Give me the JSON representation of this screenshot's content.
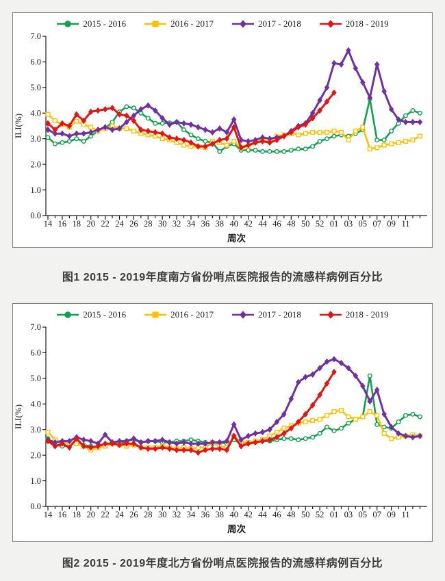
{
  "page": {
    "background": "#f2f2f1",
    "panel_border": "#7e7e7e"
  },
  "captions": [
    "图1  2015 - 2019年度南方省份哨点医院报告的流感样病例百分比",
    "图2  2015 - 2019年度北方省份哨点医院报告的流感样病例百分比"
  ],
  "chart_data": [
    {
      "type": "line",
      "title": "",
      "xlabel": "周次",
      "ylabel": "ILI(%)",
      "ylim": [
        0.0,
        7.0
      ],
      "yticks": [
        "0.0",
        "1.0",
        "2.0",
        "3.0",
        "4.0",
        "5.0",
        "6.0",
        "7.0"
      ],
      "grid": false,
      "legend_position": "top",
      "x": [
        "14",
        "15",
        "16",
        "17",
        "18",
        "19",
        "20",
        "21",
        "22",
        "23",
        "24",
        "25",
        "26",
        "27",
        "28",
        "29",
        "30",
        "31",
        "32",
        "33",
        "34",
        "35",
        "36",
        "37",
        "38",
        "39",
        "40",
        "41",
        "42",
        "43",
        "44",
        "45",
        "46",
        "47",
        "48",
        "49",
        "50",
        "51",
        "52",
        "53",
        "01",
        "02",
        "03",
        "04",
        "05",
        "06",
        "07",
        "08",
        "09",
        "10",
        "11",
        "12",
        "13"
      ],
      "series": [
        {
          "name": "2015 - 2016",
          "color": "#0FA24E",
          "marker": "circle",
          "open_marker": true,
          "line_width": 2.6,
          "values": [
            3.05,
            2.8,
            2.85,
            2.9,
            3.0,
            2.9,
            3.1,
            3.3,
            3.4,
            3.65,
            4.05,
            4.25,
            4.2,
            4.0,
            3.8,
            3.6,
            3.6,
            3.62,
            3.65,
            3.35,
            3.15,
            3.0,
            2.9,
            2.85,
            2.5,
            2.7,
            2.8,
            2.55,
            2.55,
            2.55,
            2.5,
            2.5,
            2.5,
            2.5,
            2.55,
            2.6,
            2.6,
            2.7,
            2.9,
            3.0,
            3.1,
            3.15,
            3.1,
            3.2,
            3.35,
            4.55,
            2.95,
            2.95,
            3.3,
            3.6,
            3.9,
            4.1,
            4.0
          ]
        },
        {
          "name": "2016 - 2017",
          "color": "#FFC000",
          "marker": "square",
          "open_marker": true,
          "line_width": 2.6,
          "values": [
            3.95,
            3.7,
            3.55,
            3.45,
            3.68,
            3.55,
            3.45,
            3.3,
            3.4,
            3.5,
            3.4,
            3.4,
            3.3,
            3.2,
            3.15,
            3.1,
            3.0,
            2.95,
            2.85,
            2.75,
            2.7,
            2.7,
            2.65,
            2.9,
            2.85,
            2.75,
            2.9,
            2.65,
            2.7,
            2.85,
            2.95,
            2.9,
            3.1,
            3.15,
            3.2,
            3.15,
            3.2,
            3.25,
            3.25,
            3.25,
            3.3,
            3.25,
            2.95,
            3.3,
            3.45,
            2.6,
            2.65,
            2.75,
            2.8,
            2.85,
            2.9,
            2.95,
            3.1
          ]
        },
        {
          "name": "2017 - 2018",
          "color": "#7030A0",
          "marker": "diamond",
          "open_marker": false,
          "line_width": 3,
          "values": [
            3.35,
            3.2,
            3.2,
            3.1,
            3.2,
            3.2,
            3.25,
            3.35,
            3.45,
            3.35,
            3.4,
            3.65,
            3.9,
            4.15,
            4.3,
            4.1,
            3.8,
            3.55,
            3.65,
            3.6,
            3.55,
            3.45,
            3.35,
            3.25,
            3.4,
            3.25,
            3.75,
            2.95,
            2.9,
            2.95,
            3.05,
            3.0,
            3.05,
            3.1,
            3.3,
            3.5,
            3.6,
            4.0,
            4.5,
            5.0,
            5.95,
            5.9,
            6.45,
            5.75,
            5.2,
            4.6,
            5.9,
            4.85,
            4.15,
            3.75,
            3.65,
            3.65,
            3.65
          ]
        },
        {
          "name": "2018 - 2019",
          "color": "#E21414",
          "marker": "diamond",
          "open_marker": false,
          "line_width": 3,
          "values": [
            3.6,
            3.35,
            3.6,
            3.5,
            3.95,
            3.7,
            4.05,
            4.1,
            4.15,
            4.2,
            3.95,
            3.9,
            3.7,
            3.35,
            3.3,
            3.25,
            3.2,
            3.05,
            3.0,
            2.95,
            2.85,
            2.7,
            2.7,
            2.8,
            2.95,
            3.0,
            3.45,
            2.65,
            2.75,
            2.85,
            2.9,
            2.85,
            2.95,
            3.1,
            3.25,
            3.45,
            3.55,
            3.8,
            4.1,
            4.45,
            4.8,
            null,
            null,
            null,
            null,
            null,
            null,
            null,
            null,
            null,
            null,
            null,
            null
          ]
        }
      ]
    },
    {
      "type": "line",
      "title": "",
      "xlabel": "周次",
      "ylabel": "ILI(%)",
      "ylim": [
        0.0,
        7.0
      ],
      "yticks": [
        "0.0",
        "1.0",
        "2.0",
        "3.0",
        "4.0",
        "5.0",
        "6.0",
        "7.0"
      ],
      "grid": false,
      "legend_position": "top",
      "x": [
        "14",
        "15",
        "16",
        "17",
        "18",
        "19",
        "20",
        "21",
        "22",
        "23",
        "24",
        "25",
        "26",
        "27",
        "28",
        "29",
        "30",
        "31",
        "32",
        "33",
        "34",
        "35",
        "36",
        "37",
        "38",
        "39",
        "40",
        "41",
        "42",
        "43",
        "44",
        "45",
        "46",
        "47",
        "48",
        "49",
        "50",
        "51",
        "52",
        "53",
        "01",
        "02",
        "03",
        "04",
        "05",
        "06",
        "07",
        "08",
        "09",
        "10",
        "11",
        "12",
        "13"
      ],
      "series": [
        {
          "name": "2015 - 2016",
          "color": "#0FA24E",
          "marker": "circle",
          "open_marker": true,
          "line_width": 2.6,
          "values": [
            2.65,
            2.4,
            2.35,
            2.35,
            2.55,
            2.4,
            2.35,
            2.3,
            2.35,
            2.45,
            2.45,
            2.55,
            2.6,
            2.5,
            2.55,
            2.55,
            2.5,
            2.5,
            2.55,
            2.55,
            2.6,
            2.55,
            2.5,
            2.45,
            2.5,
            2.45,
            2.6,
            2.45,
            2.5,
            2.5,
            2.55,
            2.55,
            2.6,
            2.65,
            2.65,
            2.6,
            2.65,
            2.7,
            2.85,
            3.1,
            2.95,
            3.05,
            3.25,
            3.4,
            3.5,
            5.1,
            3.2,
            3.1,
            3.05,
            3.3,
            3.55,
            3.6,
            3.5
          ]
        },
        {
          "name": "2016 - 2017",
          "color": "#FFC000",
          "marker": "square",
          "open_marker": true,
          "line_width": 2.6,
          "values": [
            2.9,
            2.6,
            2.5,
            2.45,
            2.45,
            2.35,
            2.2,
            2.3,
            2.35,
            2.45,
            2.4,
            2.35,
            2.4,
            2.3,
            2.3,
            2.3,
            2.35,
            2.3,
            2.25,
            2.3,
            2.25,
            2.3,
            2.3,
            2.5,
            2.35,
            2.3,
            2.75,
            2.5,
            2.5,
            2.55,
            2.6,
            2.75,
            2.9,
            3.05,
            3.15,
            3.25,
            3.3,
            3.35,
            3.4,
            3.55,
            3.7,
            3.75,
            3.5,
            3.4,
            3.5,
            3.7,
            3.55,
            2.85,
            2.65,
            2.7,
            2.75,
            2.8,
            2.75
          ]
        },
        {
          "name": "2017 - 2018",
          "color": "#7030A0",
          "marker": "diamond",
          "open_marker": false,
          "line_width": 3,
          "values": [
            2.6,
            2.5,
            2.55,
            2.55,
            2.7,
            2.6,
            2.55,
            2.45,
            2.8,
            2.5,
            2.55,
            2.55,
            2.65,
            2.5,
            2.55,
            2.55,
            2.6,
            2.5,
            2.45,
            2.5,
            2.45,
            2.45,
            2.45,
            2.5,
            2.5,
            2.55,
            3.2,
            2.6,
            2.75,
            2.85,
            2.9,
            3.0,
            3.3,
            3.6,
            4.2,
            4.85,
            5.05,
            5.15,
            5.4,
            5.65,
            5.75,
            5.6,
            5.4,
            5.1,
            4.7,
            4.1,
            4.55,
            3.6,
            3.1,
            2.85,
            2.75,
            2.7,
            2.75
          ]
        },
        {
          "name": "2018 - 2019",
          "color": "#E21414",
          "marker": "diamond",
          "open_marker": false,
          "line_width": 3,
          "values": [
            2.55,
            2.35,
            2.45,
            2.3,
            2.65,
            2.35,
            2.3,
            2.35,
            2.45,
            2.45,
            2.4,
            2.45,
            2.45,
            2.3,
            2.25,
            2.25,
            2.3,
            2.25,
            2.2,
            2.2,
            2.2,
            2.1,
            2.2,
            2.25,
            2.25,
            2.2,
            2.75,
            2.35,
            2.45,
            2.5,
            2.55,
            2.6,
            2.7,
            2.85,
            3.05,
            3.3,
            3.6,
            3.95,
            4.35,
            4.8,
            5.25,
            null,
            null,
            null,
            null,
            null,
            null,
            null,
            null,
            null,
            null,
            null,
            null
          ]
        }
      ]
    }
  ]
}
